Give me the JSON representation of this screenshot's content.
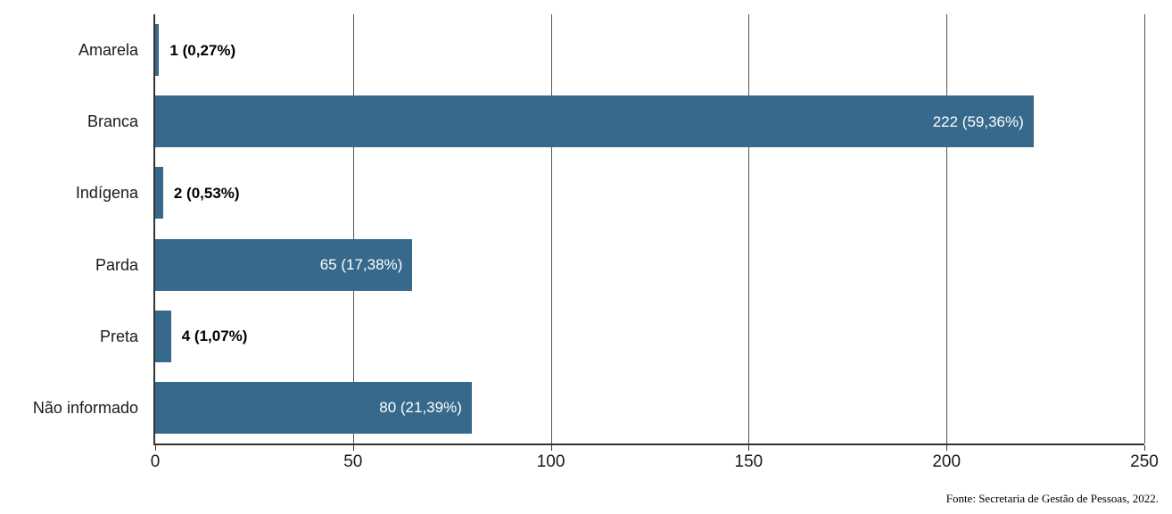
{
  "chart_data": {
    "type": "bar",
    "orientation": "horizontal",
    "title": "",
    "xlabel": "",
    "ylabel": "",
    "xlim": [
      0,
      250
    ],
    "xticks": [
      "0",
      "50",
      "100",
      "150",
      "200",
      "250"
    ],
    "grid": true,
    "bar_color": "#36698C",
    "categories": [
      "Amarela",
      "Branca",
      "Indígena",
      "Parda",
      "Preta",
      "Não informado"
    ],
    "values": [
      1,
      222,
      2,
      65,
      4,
      80
    ],
    "percent_labels": [
      "0,27%",
      "59,36%",
      "0,53%",
      "17,38%",
      "1,07%",
      "21,39%"
    ],
    "rows": [
      {
        "category": "Amarela",
        "value": 1,
        "value_label": "1 (0,27%)",
        "label_placement": "outside"
      },
      {
        "category": "Branca",
        "value": 222,
        "value_label": "222 (59,36%)",
        "label_placement": "inside"
      },
      {
        "category": "Indígena",
        "value": 2,
        "value_label": "2 (0,53%)",
        "label_placement": "outside"
      },
      {
        "category": "Parda",
        "value": 65,
        "value_label": "65 (17,38%)",
        "label_placement": "inside"
      },
      {
        "category": "Preta",
        "value": 4,
        "value_label": "4 (1,07%)",
        "label_placement": "outside"
      },
      {
        "category": "Não informado",
        "value": 80,
        "value_label": "80 (21,39%)",
        "label_placement": "inside"
      }
    ],
    "source_note": "Fonte: Secretaria de Gestão de Pessoas, 2022."
  }
}
